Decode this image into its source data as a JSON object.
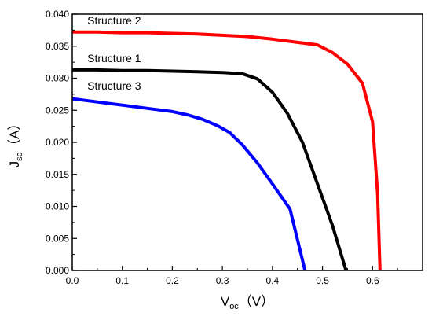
{
  "chart_data": {
    "type": "line",
    "xlabel": "Voc（V）",
    "xlabel_main": "V",
    "xlabel_sub": "oc",
    "xlabel_unit": "（V）",
    "ylabel": "Jsc（A）",
    "ylabel_main": "J",
    "ylabel_sub": "sc",
    "ylabel_unit": "（A）",
    "xlim": [
      0.0,
      0.7
    ],
    "ylim": [
      0.0,
      0.04
    ],
    "xticks": [
      0.0,
      0.1,
      0.2,
      0.3,
      0.4,
      0.5,
      0.6
    ],
    "xtick_labels": [
      "0.0",
      "0.1",
      "0.2",
      "0.3",
      "0.4",
      "0.5",
      "0.6"
    ],
    "yticks": [
      0.0,
      0.005,
      0.01,
      0.015,
      0.02,
      0.025,
      0.03,
      0.035,
      0.04
    ],
    "ytick_labels": [
      "0.000",
      "0.005",
      "0.010",
      "0.015",
      "0.020",
      "0.025",
      "0.030",
      "0.035",
      "0.040"
    ],
    "grid": false,
    "legend": "inline labels",
    "series": [
      {
        "name": "Structure 2",
        "color": "#ff0000",
        "x": [
          0.0,
          0.05,
          0.1,
          0.15,
          0.2,
          0.25,
          0.3,
          0.35,
          0.4,
          0.45,
          0.49,
          0.52,
          0.55,
          0.58,
          0.6,
          0.61,
          0.615
        ],
        "y": [
          0.0372,
          0.0372,
          0.0371,
          0.0371,
          0.037,
          0.0369,
          0.0367,
          0.0365,
          0.0361,
          0.0356,
          0.0352,
          0.034,
          0.0322,
          0.0292,
          0.0232,
          0.012,
          0.0
        ]
      },
      {
        "name": "Structure 1",
        "color": "#000000",
        "x": [
          0.0,
          0.05,
          0.1,
          0.15,
          0.2,
          0.25,
          0.3,
          0.34,
          0.37,
          0.4,
          0.43,
          0.46,
          0.49,
          0.52,
          0.547
        ],
        "y": [
          0.0313,
          0.0313,
          0.0312,
          0.0312,
          0.0311,
          0.031,
          0.0309,
          0.0307,
          0.0299,
          0.0278,
          0.0245,
          0.02,
          0.0135,
          0.007,
          0.0
        ]
      },
      {
        "name": "Structure 3",
        "color": "#0000ff",
        "x": [
          0.0,
          0.05,
          0.1,
          0.15,
          0.2,
          0.23,
          0.26,
          0.29,
          0.315,
          0.34,
          0.37,
          0.4,
          0.435,
          0.465
        ],
        "y": [
          0.0268,
          0.0263,
          0.0258,
          0.0253,
          0.0248,
          0.0243,
          0.0236,
          0.0226,
          0.0215,
          0.0196,
          0.0168,
          0.0135,
          0.0096,
          0.0
        ]
      }
    ],
    "annotations": [
      {
        "text": "Structure 2",
        "x": 0.03,
        "y": 0.0384
      },
      {
        "text": "Structure 1",
        "x": 0.03,
        "y": 0.0325
      },
      {
        "text": "Structure 3",
        "x": 0.03,
        "y": 0.0282
      }
    ]
  }
}
